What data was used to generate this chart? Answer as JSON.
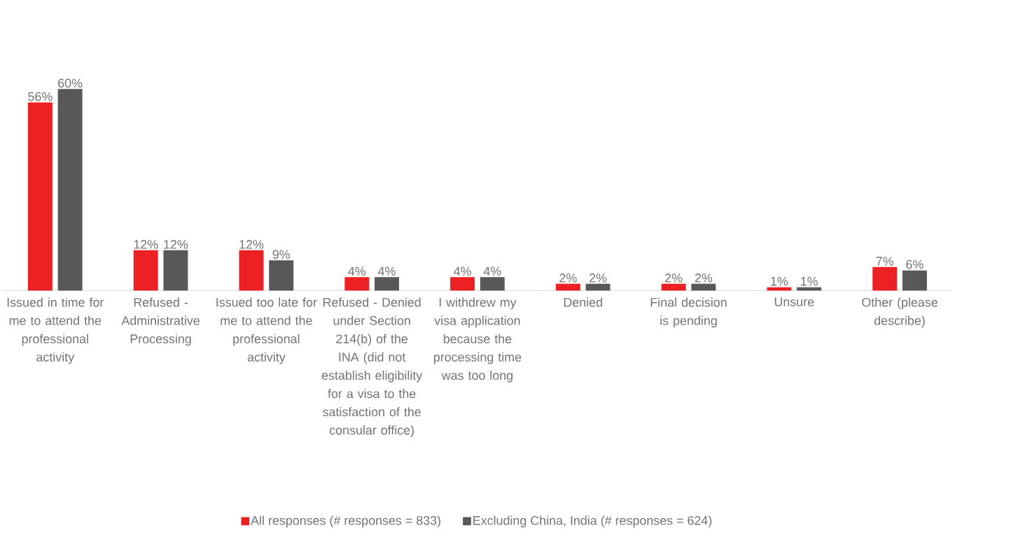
{
  "chart_data": {
    "type": "bar",
    "categories": [
      "Issued in time for me to attend the professional activity",
      "Refused - Administrative Processing",
      "Issued too late for me to attend the professional activity",
      "Refused - Denied under Section 214(b) of the INA (did not establish eligibility for a visa to the satisfaction of the consular office)",
      "I withdrew my visa application because the processing time was too long",
      "Denied",
      "Final decision is pending",
      "Unsure",
      "Other (please describe)"
    ],
    "series": [
      {
        "name": "All responses (# responses = 833)",
        "color": "#ed2124",
        "values": [
          56,
          12,
          12,
          4,
          4,
          2,
          2,
          1,
          7
        ],
        "value_labels": [
          "56%",
          "12%",
          "12%",
          "4%",
          "4%",
          "2%",
          "2%",
          "1%",
          "7%"
        ]
      },
      {
        "name": "Excluding China, India (# responses = 624)",
        "color": "#58585a",
        "values": [
          60,
          12,
          9,
          4,
          4,
          2,
          2,
          1,
          6
        ],
        "value_labels": [
          "60%",
          "12%",
          "9%",
          "4%",
          "4%",
          "2%",
          "2%",
          "1%",
          "6%"
        ]
      }
    ],
    "legend": "bottom"
  }
}
